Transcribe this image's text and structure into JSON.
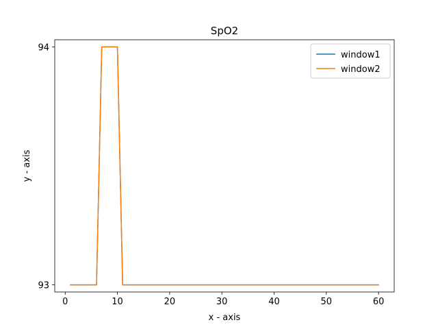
{
  "chart_data": {
    "type": "line",
    "title": "SpO2",
    "xlabel": "x - axis",
    "ylabel": "y - axis",
    "xlim": [
      -2.0,
      63.0
    ],
    "ylim": [
      92.97,
      94.03
    ],
    "xticks": [
      0,
      10,
      20,
      30,
      40,
      50,
      60
    ],
    "yticks": [
      93,
      94
    ],
    "grid": false,
    "legend_position": "top-right",
    "series": [
      {
        "name": "window1",
        "color": "#1f77b4",
        "x": [
          1,
          2,
          3,
          4,
          5,
          6,
          7,
          8,
          9,
          10,
          11,
          12,
          13,
          14,
          15,
          16,
          17,
          18,
          19,
          20,
          21,
          22,
          23,
          24,
          25,
          26,
          27,
          28,
          29,
          30,
          31,
          32,
          33,
          34,
          35,
          36,
          37,
          38,
          39,
          40,
          41,
          42,
          43,
          44,
          45,
          46,
          47,
          48,
          49,
          50,
          51,
          52,
          53,
          54,
          55,
          56,
          57,
          58,
          59,
          60
        ],
        "y": [
          93,
          93,
          93,
          93,
          93,
          93,
          94,
          94,
          94,
          94,
          93,
          93,
          93,
          93,
          93,
          93,
          93,
          93,
          93,
          93,
          93,
          93,
          93,
          93,
          93,
          93,
          93,
          93,
          93,
          93,
          93,
          93,
          93,
          93,
          93,
          93,
          93,
          93,
          93,
          93,
          93,
          93,
          93,
          93,
          93,
          93,
          93,
          93,
          93,
          93,
          93,
          93,
          93,
          93,
          93,
          93,
          93,
          93,
          93,
          93
        ]
      },
      {
        "name": "window2",
        "color": "#ff7f0e",
        "x": [
          1,
          2,
          3,
          4,
          5,
          6,
          7,
          8,
          9,
          10,
          11,
          12,
          13,
          14,
          15,
          16,
          17,
          18,
          19,
          20,
          21,
          22,
          23,
          24,
          25,
          26,
          27,
          28,
          29,
          30,
          31,
          32,
          33,
          34,
          35,
          36,
          37,
          38,
          39,
          40,
          41,
          42,
          43,
          44,
          45,
          46,
          47,
          48,
          49,
          50,
          51,
          52,
          53,
          54,
          55,
          56,
          57,
          58,
          59,
          60
        ],
        "y": [
          93,
          93,
          93,
          93,
          93,
          93,
          94,
          94,
          94,
          94,
          93,
          93,
          93,
          93,
          93,
          93,
          93,
          93,
          93,
          93,
          93,
          93,
          93,
          93,
          93,
          93,
          93,
          93,
          93,
          93,
          93,
          93,
          93,
          93,
          93,
          93,
          93,
          93,
          93,
          93,
          93,
          93,
          93,
          93,
          93,
          93,
          93,
          93,
          93,
          93,
          93,
          93,
          93,
          93,
          93,
          93,
          93,
          93,
          93,
          93
        ]
      }
    ]
  }
}
